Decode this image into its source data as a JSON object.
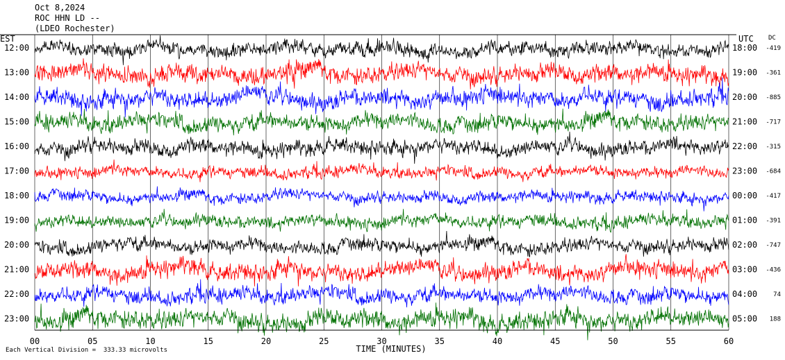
{
  "header": {
    "date": "Oct 8,2024",
    "station": "ROC HHN LD --",
    "location": "(LDEO Rochester)"
  },
  "left_tz": "EST",
  "right_tz": "UTC",
  "dc_label": "DC",
  "xlabel": "TIME (MINUTES)",
  "footer": "Each Vertical Division =  333.33 microvolts",
  "colors": [
    "#000000",
    "#ff0000",
    "#0000ff",
    "#007000"
  ],
  "chart_data": {
    "type": "line",
    "title": "",
    "xlabel": "TIME (MINUTES)",
    "xlim": [
      0,
      60
    ],
    "x_ticks": [
      "00",
      "05",
      "10",
      "15",
      "20",
      "25",
      "30",
      "35",
      "40",
      "45",
      "50",
      "55",
      "60"
    ],
    "rows": [
      {
        "est": "12:00",
        "utc": "18:00",
        "dc": "-419",
        "color": "#000000",
        "amp": 0.55
      },
      {
        "est": "13:00",
        "utc": "19:00",
        "dc": "-361",
        "color": "#ff0000",
        "amp": 0.7
      },
      {
        "est": "14:00",
        "utc": "20:00",
        "dc": "-885",
        "color": "#0000ff",
        "amp": 0.7
      },
      {
        "est": "15:00",
        "utc": "21:00",
        "dc": "-717",
        "color": "#007000",
        "amp": 0.65
      },
      {
        "est": "16:00",
        "utc": "22:00",
        "dc": "-315",
        "color": "#000000",
        "amp": 0.6
      },
      {
        "est": "17:00",
        "utc": "23:00",
        "dc": "-684",
        "color": "#ff0000",
        "amp": 0.45
      },
      {
        "est": "18:00",
        "utc": "00:00",
        "dc": "-417",
        "color": "#0000ff",
        "amp": 0.45
      },
      {
        "est": "19:00",
        "utc": "01:00",
        "dc": "-391",
        "color": "#007000",
        "amp": 0.5
      },
      {
        "est": "20:00",
        "utc": "02:00",
        "dc": "-747",
        "color": "#000000",
        "amp": 0.55
      },
      {
        "est": "21:00",
        "utc": "03:00",
        "dc": "-436",
        "color": "#ff0000",
        "amp": 0.7
      },
      {
        "est": "22:00",
        "utc": "04:00",
        "dc": "74",
        "color": "#0000ff",
        "amp": 0.6
      },
      {
        "est": "23:00",
        "utc": "05:00",
        "dc": "188",
        "color": "#007000",
        "amp": 0.75
      }
    ]
  }
}
